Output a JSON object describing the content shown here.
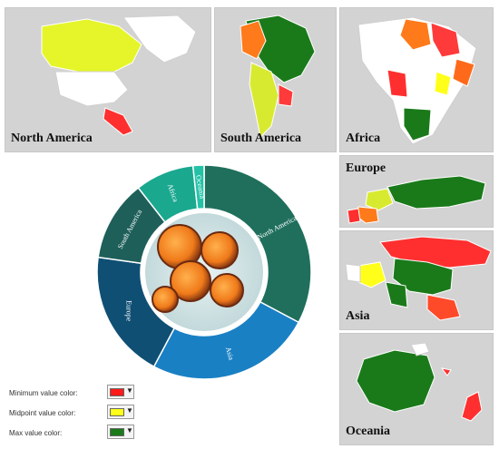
{
  "maps": {
    "north_america": {
      "title": "North America"
    },
    "south_america": {
      "title": "South America"
    },
    "africa": {
      "title": "Africa"
    },
    "europe": {
      "title": "Europe"
    },
    "asia": {
      "title": "Asia"
    },
    "oceania": {
      "title": "Oceania"
    }
  },
  "donut": {
    "segments": [
      {
        "label": "North America",
        "color": "#1f6f5c"
      },
      {
        "label": "Asia",
        "color": "#1a80c4"
      },
      {
        "label": "Europe",
        "color": "#0f4f74"
      },
      {
        "label": "South America",
        "color": "#1e5f5a"
      },
      {
        "label": "Africa",
        "color": "#1aa88f"
      },
      {
        "label": "Oceania",
        "color": "#23c2a6"
      }
    ],
    "center_image": "microscope-cells-image"
  },
  "legend": {
    "rows": [
      {
        "label": "Minimum value color:",
        "color": "#ff1a1a"
      },
      {
        "label": "Midpoint value color:",
        "color": "#ffff1a"
      },
      {
        "label": "Max value color:",
        "color": "#1a7a1a"
      }
    ],
    "arrow": "▼"
  },
  "colors": {
    "min": "#ff1a1a",
    "mid": "#ffff1a",
    "max": "#1a7a1a"
  }
}
